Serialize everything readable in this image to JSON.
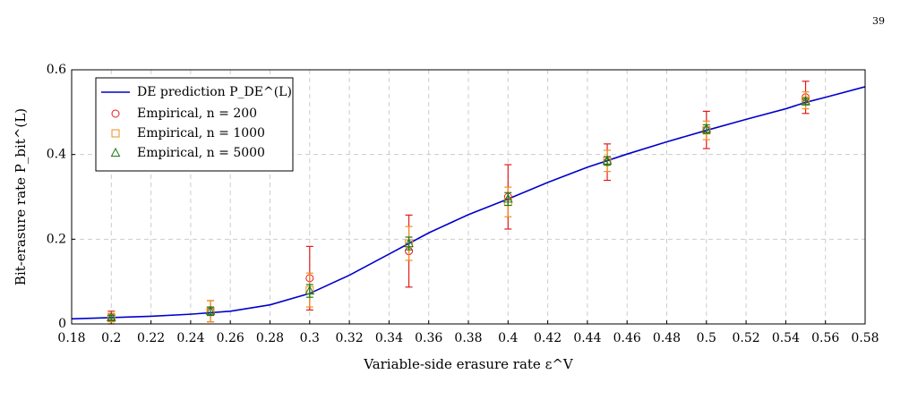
{
  "page_number": "39",
  "chart_data": {
    "type": "line",
    "xlabel": "Variable-side erasure rate ε^V",
    "ylabel": "Bit-erasure rate P_bit^(L)",
    "xlim": [
      0.18,
      0.58
    ],
    "ylim": [
      0,
      0.6
    ],
    "xticks": [
      0.18,
      0.2,
      0.22,
      0.24,
      0.26,
      0.28,
      0.3,
      0.32,
      0.34,
      0.36,
      0.38,
      0.4,
      0.42,
      0.44,
      0.46,
      0.48,
      0.5,
      0.52,
      0.54,
      0.56,
      0.58
    ],
    "yticks": [
      0,
      0.2,
      0.4,
      0.6
    ],
    "grid": true,
    "legend": "upper left",
    "curve": {
      "name": "DE prediction P_DE^(L)",
      "color": "#0000cc",
      "x": [
        0.18,
        0.2,
        0.22,
        0.24,
        0.26,
        0.28,
        0.3,
        0.32,
        0.34,
        0.36,
        0.38,
        0.4,
        0.42,
        0.44,
        0.46,
        0.48,
        0.5,
        0.52,
        0.54,
        0.55,
        0.56,
        0.58
      ],
      "values": [
        0.012,
        0.015,
        0.018,
        0.023,
        0.03,
        0.045,
        0.072,
        0.115,
        0.165,
        0.215,
        0.258,
        0.295,
        0.334,
        0.37,
        0.401,
        0.43,
        0.457,
        0.483,
        0.508,
        0.523,
        0.535,
        0.56
      ]
    },
    "series": [
      {
        "name": "Empirical, n = 200",
        "color": "#e31a1c",
        "marker": "circle",
        "x": [
          0.2,
          0.25,
          0.3,
          0.35,
          0.4,
          0.45,
          0.5,
          0.55
        ],
        "values": [
          0.015,
          0.03,
          0.108,
          0.172,
          0.3,
          0.382,
          0.458,
          0.535
        ],
        "errors": [
          0.015,
          0.025,
          0.075,
          0.085,
          0.076,
          0.043,
          0.044,
          0.038
        ]
      },
      {
        "name": "Empirical, n = 1000",
        "color": "#f28e1c",
        "marker": "square",
        "x": [
          0.2,
          0.25,
          0.3,
          0.35,
          0.4,
          0.45,
          0.5,
          0.55
        ],
        "values": [
          0.015,
          0.03,
          0.08,
          0.19,
          0.288,
          0.385,
          0.457,
          0.528
        ],
        "errors": [
          0.01,
          0.025,
          0.04,
          0.04,
          0.035,
          0.025,
          0.022,
          0.02
        ]
      },
      {
        "name": "Empirical, n = 5000",
        "color": "#1a7a1a",
        "marker": "triangle",
        "x": [
          0.2,
          0.25,
          0.3,
          0.35,
          0.4,
          0.45,
          0.5,
          0.55
        ],
        "values": [
          0.015,
          0.03,
          0.078,
          0.19,
          0.295,
          0.385,
          0.46,
          0.525
        ],
        "errors": [
          0.005,
          0.01,
          0.015,
          0.015,
          0.015,
          0.01,
          0.01,
          0.008
        ]
      }
    ]
  }
}
